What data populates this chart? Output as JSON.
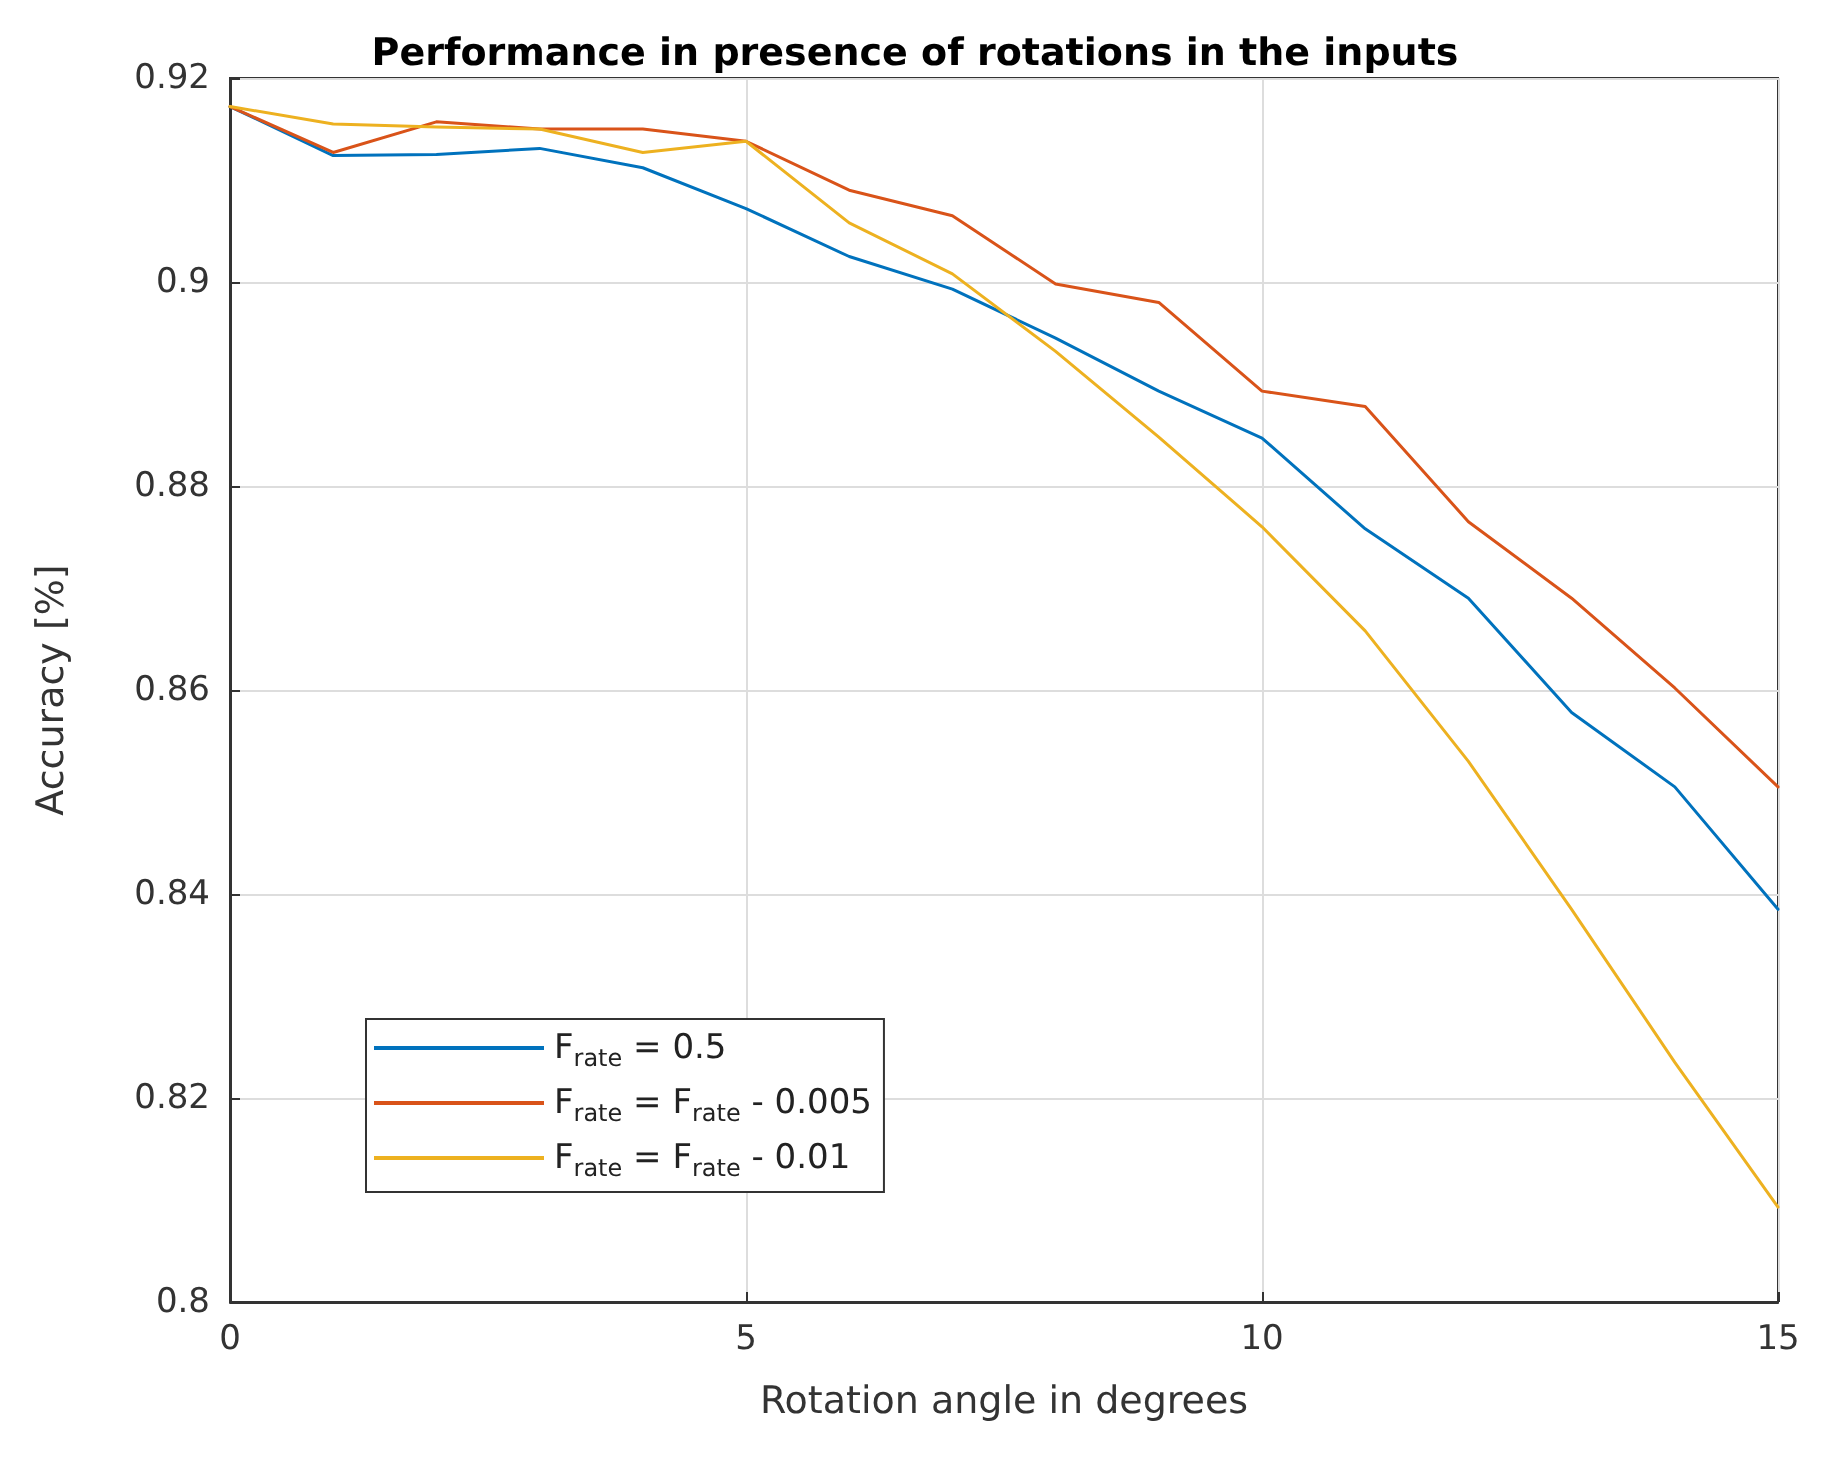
{
  "chart_data": {
    "type": "line",
    "title": "Performance in presence of rotations in the inputs",
    "xlabel": "Rotation angle in degrees",
    "ylabel": "Accuracy [%]",
    "x": [
      0,
      1,
      2,
      3,
      4,
      5,
      6,
      7,
      8,
      9,
      10,
      11,
      12,
      13,
      14,
      15
    ],
    "series": [
      {
        "name": "F$_{rate}$ = 0.5",
        "color": "#0072bd",
        "values": [
          0.9172,
          0.9124,
          0.9125,
          0.9131,
          0.9112,
          0.9072,
          0.9025,
          0.8993,
          0.8945,
          0.8893,
          0.8847,
          0.8758,
          0.869,
          0.8578,
          0.8505,
          0.8385
        ]
      },
      {
        "name": "F$_{rate}$ = F$_{rate}$ - 0.005",
        "color": "#d95319",
        "values": [
          0.9172,
          0.9127,
          0.9157,
          0.915,
          0.915,
          0.9138,
          0.909,
          0.9065,
          0.8998,
          0.898,
          0.8893,
          0.8878,
          0.8765,
          0.869,
          0.8602,
          0.8505
        ]
      },
      {
        "name": "F$_{rate}$ = F$_{rate}$ - 0.01",
        "color": "#edb120",
        "values": [
          0.9172,
          0.9155,
          0.9152,
          0.915,
          0.9127,
          0.9138,
          0.9058,
          0.9008,
          0.8932,
          0.8848,
          0.876,
          0.8658,
          0.853,
          0.8385,
          0.8235,
          0.8093
        ]
      }
    ],
    "xlim": [
      0,
      15
    ],
    "xticks": [
      0,
      5,
      10,
      15
    ],
    "ylim": [
      0.8,
      0.92
    ],
    "yticks": [
      0.8,
      0.82,
      0.84,
      0.86,
      0.88,
      0.9,
      0.92
    ],
    "grid": true,
    "legend": "bottom left",
    "marker": "none",
    "line_style": "solid"
  }
}
